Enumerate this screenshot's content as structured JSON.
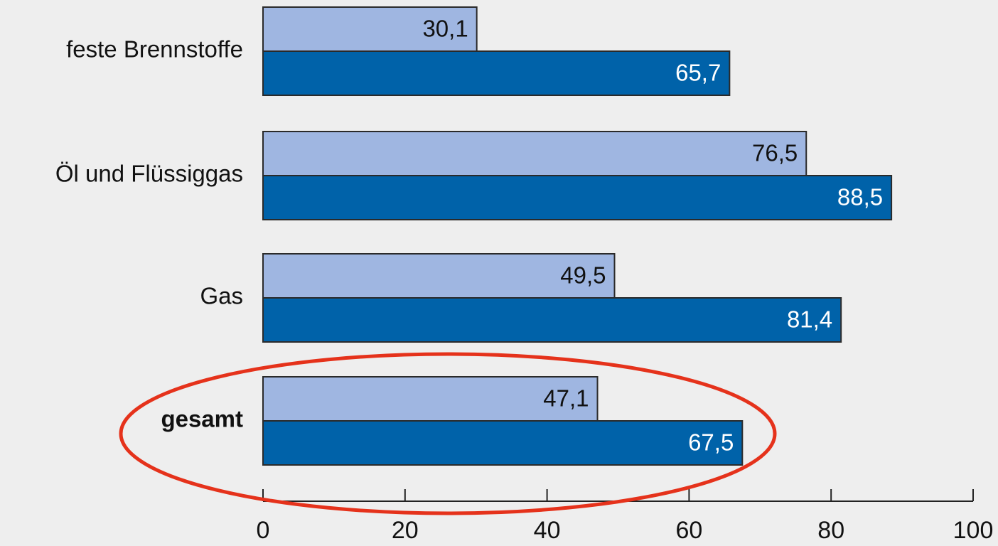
{
  "chart_data": {
    "type": "hbar",
    "categories": [
      "feste Brennstoffe",
      "Öl und Flüssiggas",
      "Gas",
      "gesamt"
    ],
    "series": [
      {
        "color": "#9fb6e1",
        "values": [
          30.1,
          76.5,
          49.5,
          47.1
        ],
        "value_labels": [
          "30,1",
          "76,5",
          "49,5",
          "47,1"
        ]
      },
      {
        "color": "#0062a9",
        "values": [
          65.7,
          88.5,
          81.4,
          67.5
        ],
        "value_labels": [
          "65,7",
          "88,5",
          "81,4",
          "67,5"
        ]
      }
    ],
    "xlim": [
      0,
      100
    ],
    "xticks": [
      0,
      20,
      40,
      60,
      80,
      100
    ]
  }
}
